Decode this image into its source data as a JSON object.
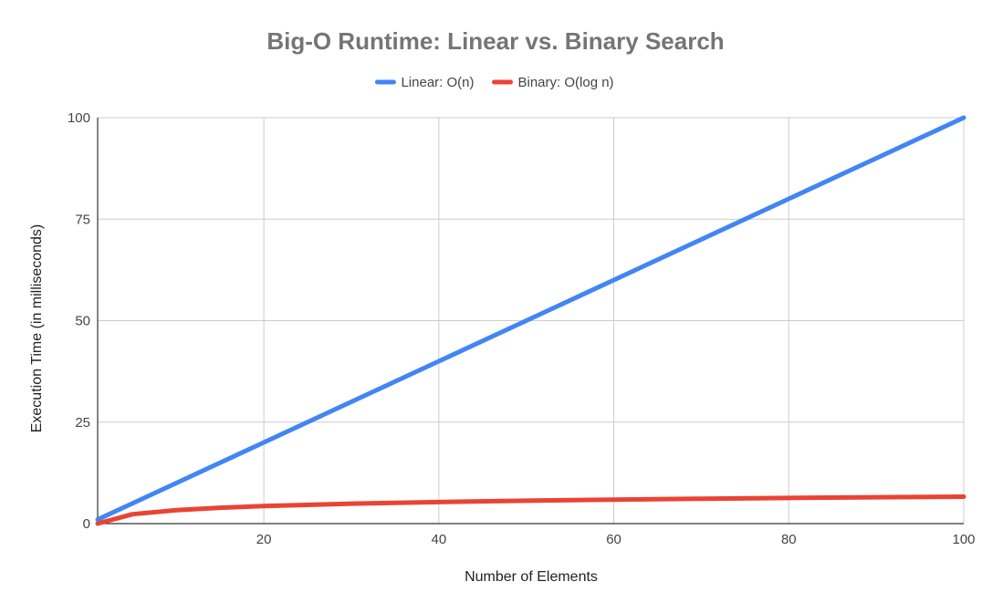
{
  "chart_data": {
    "type": "line",
    "title": "Big-O Runtime: Linear vs. Binary Search",
    "xlabel": "Number of Elements",
    "ylabel": "Execution Time (in milliseconds)",
    "xlim": [
      1,
      100
    ],
    "ylim": [
      0,
      100
    ],
    "xticks": [
      20,
      40,
      60,
      80,
      100
    ],
    "yticks": [
      0,
      25,
      50,
      75,
      100
    ],
    "grid": true,
    "legend_position": "top",
    "series": [
      {
        "name": "Linear: O(n)",
        "color": "#4285F4",
        "x": [
          1,
          5,
          10,
          20,
          30,
          40,
          50,
          60,
          70,
          80,
          90,
          100
        ],
        "y": [
          1,
          5,
          10,
          20,
          30,
          40,
          50,
          60,
          70,
          80,
          90,
          100
        ]
      },
      {
        "name": "Binary: O(log n)",
        "color": "#EA4335",
        "x": [
          1,
          5,
          10,
          15,
          20,
          30,
          40,
          50,
          60,
          70,
          80,
          90,
          100
        ],
        "y": [
          0,
          2.32,
          3.32,
          3.91,
          4.32,
          4.91,
          5.32,
          5.64,
          5.91,
          6.13,
          6.32,
          6.49,
          6.64
        ]
      }
    ]
  }
}
